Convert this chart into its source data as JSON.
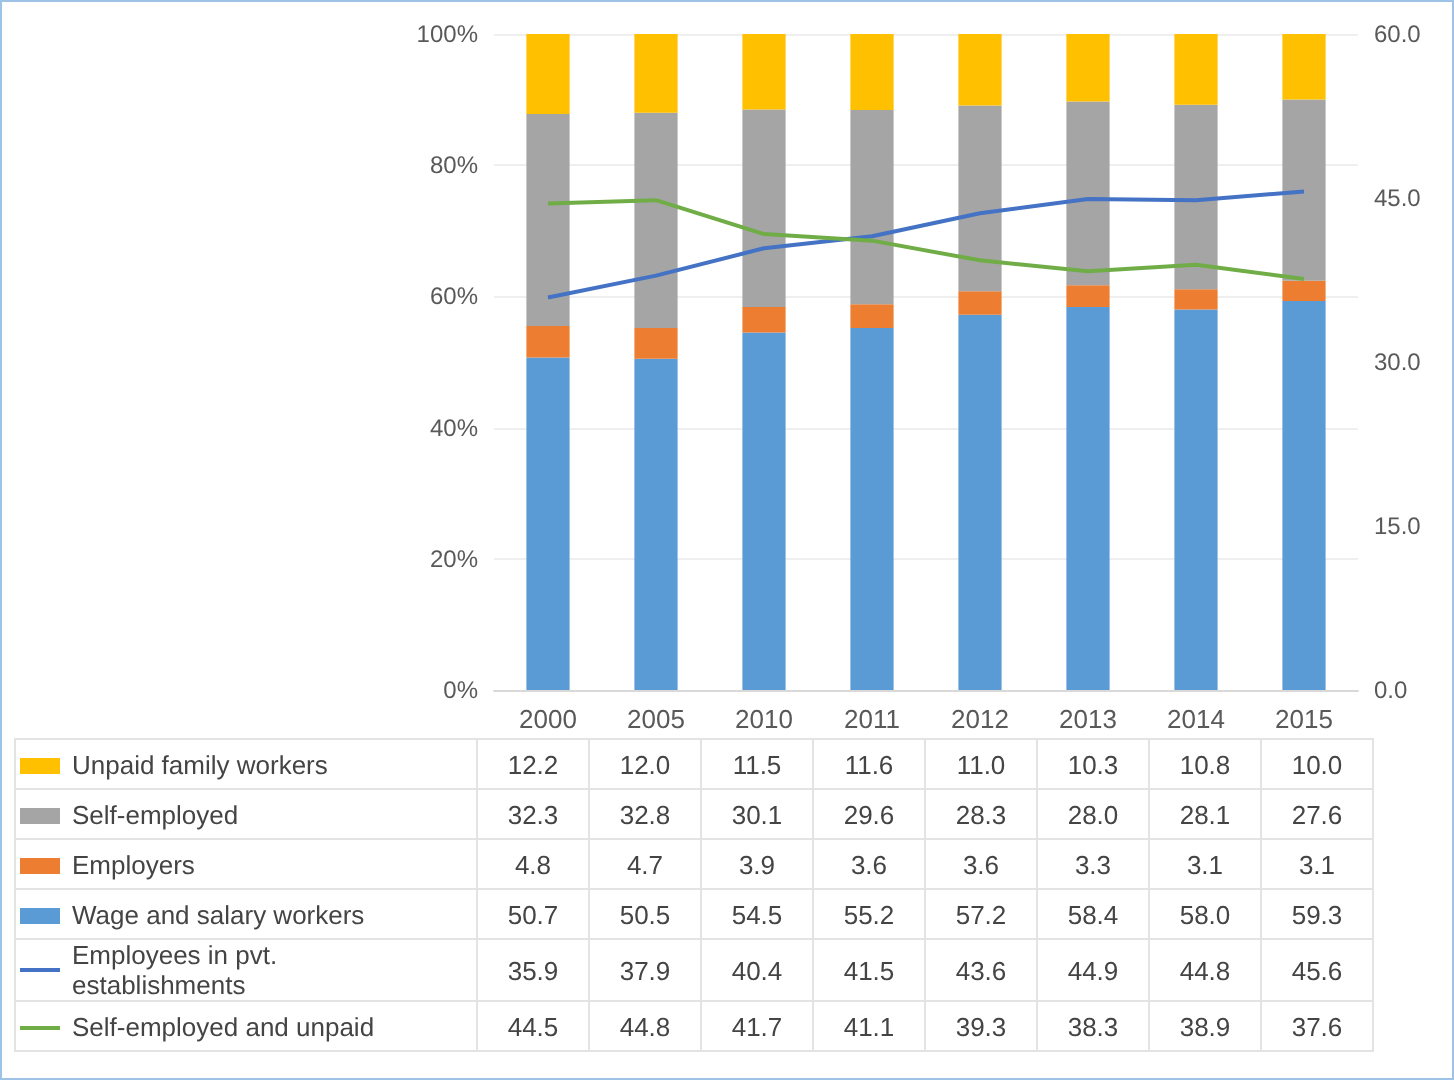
{
  "chart_data": {
    "type": "bar",
    "stacked": true,
    "categories": [
      "2000",
      "2005",
      "2010",
      "2011",
      "2012",
      "2013",
      "2014",
      "2015"
    ],
    "series": [
      {
        "name": "Wage and salary workers",
        "color": "#5b9bd5",
        "values": [
          50.7,
          50.5,
          54.5,
          55.2,
          57.2,
          58.4,
          58.0,
          59.3
        ],
        "value_labels": [
          "50.7",
          "50.5",
          "54.5",
          "55.2",
          "57.2",
          "58.4",
          "58.0",
          "59.3"
        ]
      },
      {
        "name": "Employers",
        "color": "#ed7d31",
        "values": [
          4.8,
          4.7,
          3.9,
          3.6,
          3.6,
          3.3,
          3.1,
          3.1
        ],
        "value_labels": [
          "4.8",
          "4.7",
          "3.9",
          "3.6",
          "3.6",
          "3.3",
          "3.1",
          "3.1"
        ]
      },
      {
        "name": "Self-employed",
        "color": "#a5a5a5",
        "values": [
          32.3,
          32.8,
          30.1,
          29.6,
          28.3,
          28.0,
          28.1,
          27.6
        ],
        "value_labels": [
          "32.3",
          "32.8",
          "30.1",
          "29.6",
          "28.3",
          "28.0",
          "28.1",
          "27.6"
        ]
      },
      {
        "name": "Unpaid family workers",
        "color": "#ffc000",
        "values": [
          12.2,
          12.0,
          11.5,
          11.6,
          11.0,
          10.3,
          10.8,
          10.0
        ],
        "value_labels": [
          "12.2",
          "12.0",
          "11.5",
          "11.6",
          "11.0",
          "10.3",
          "10.8",
          "10.0"
        ]
      },
      {
        "name": "Employees in pvt. establishments",
        "type": "line",
        "axis": "y2",
        "color": "#4472c4",
        "values": [
          35.9,
          37.9,
          40.4,
          41.5,
          43.6,
          44.9,
          44.8,
          45.6
        ],
        "value_labels": [
          "35.9",
          "37.9",
          "40.4",
          "41.5",
          "43.6",
          "44.9",
          "44.8",
          "45.6"
        ]
      },
      {
        "name": "Self-employed and unpaid",
        "type": "line",
        "axis": "y2",
        "color": "#70ad47",
        "values": [
          44.5,
          44.8,
          41.7,
          41.1,
          39.3,
          38.3,
          38.9,
          37.6
        ],
        "value_labels": [
          "44.5",
          "44.8",
          "41.7",
          "41.1",
          "39.3",
          "38.3",
          "38.9",
          "37.6"
        ]
      }
    ],
    "ylim": [
      0,
      100
    ],
    "yticks": [
      {
        "value": 0,
        "label": "0%"
      },
      {
        "value": 20,
        "label": "20%"
      },
      {
        "value": 40,
        "label": "40%"
      },
      {
        "value": 60,
        "label": "60%"
      },
      {
        "value": 80,
        "label": "80%"
      },
      {
        "value": 100,
        "label": "100%"
      }
    ],
    "y2lim": [
      0,
      60
    ],
    "y2ticks": [
      {
        "value": 0,
        "label": "0.0"
      },
      {
        "value": 15,
        "label": "15.0"
      },
      {
        "value": 30,
        "label": "30.0"
      },
      {
        "value": 45,
        "label": "45.0"
      },
      {
        "value": 60,
        "label": "60.0"
      }
    ],
    "grid": "y",
    "marker": "none",
    "line_style": "solid",
    "legend": "bottom"
  }
}
